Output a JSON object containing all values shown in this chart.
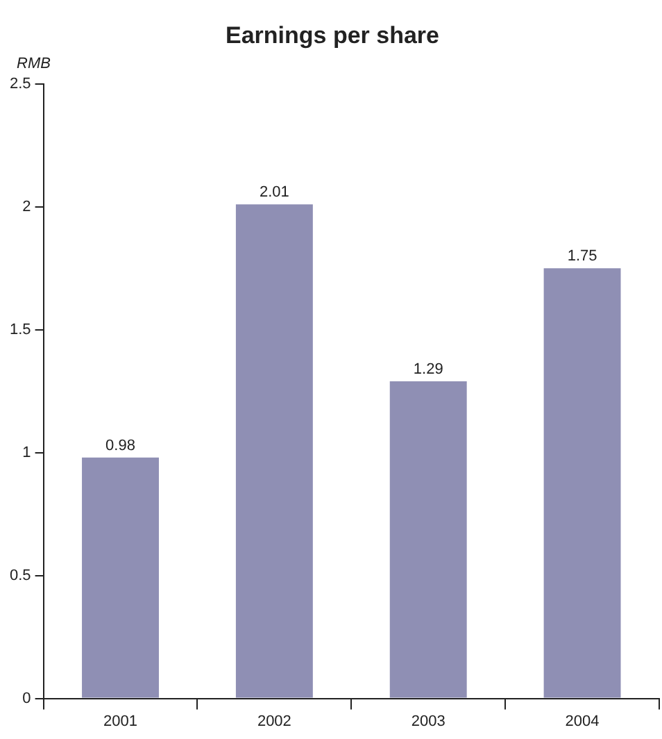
{
  "chart_data": {
    "type": "bar",
    "title": "Earnings per share",
    "ylabel": "RMB",
    "categories": [
      "2001",
      "2002",
      "2003",
      "2004"
    ],
    "values": [
      0.98,
      2.01,
      1.29,
      1.75
    ],
    "color": "#8f8fb4",
    "ylim": [
      0,
      2.5
    ],
    "yticks": [
      0,
      0.5,
      1,
      1.5,
      2,
      2.5
    ],
    "grid": false,
    "legend": false,
    "data_labels": true
  }
}
